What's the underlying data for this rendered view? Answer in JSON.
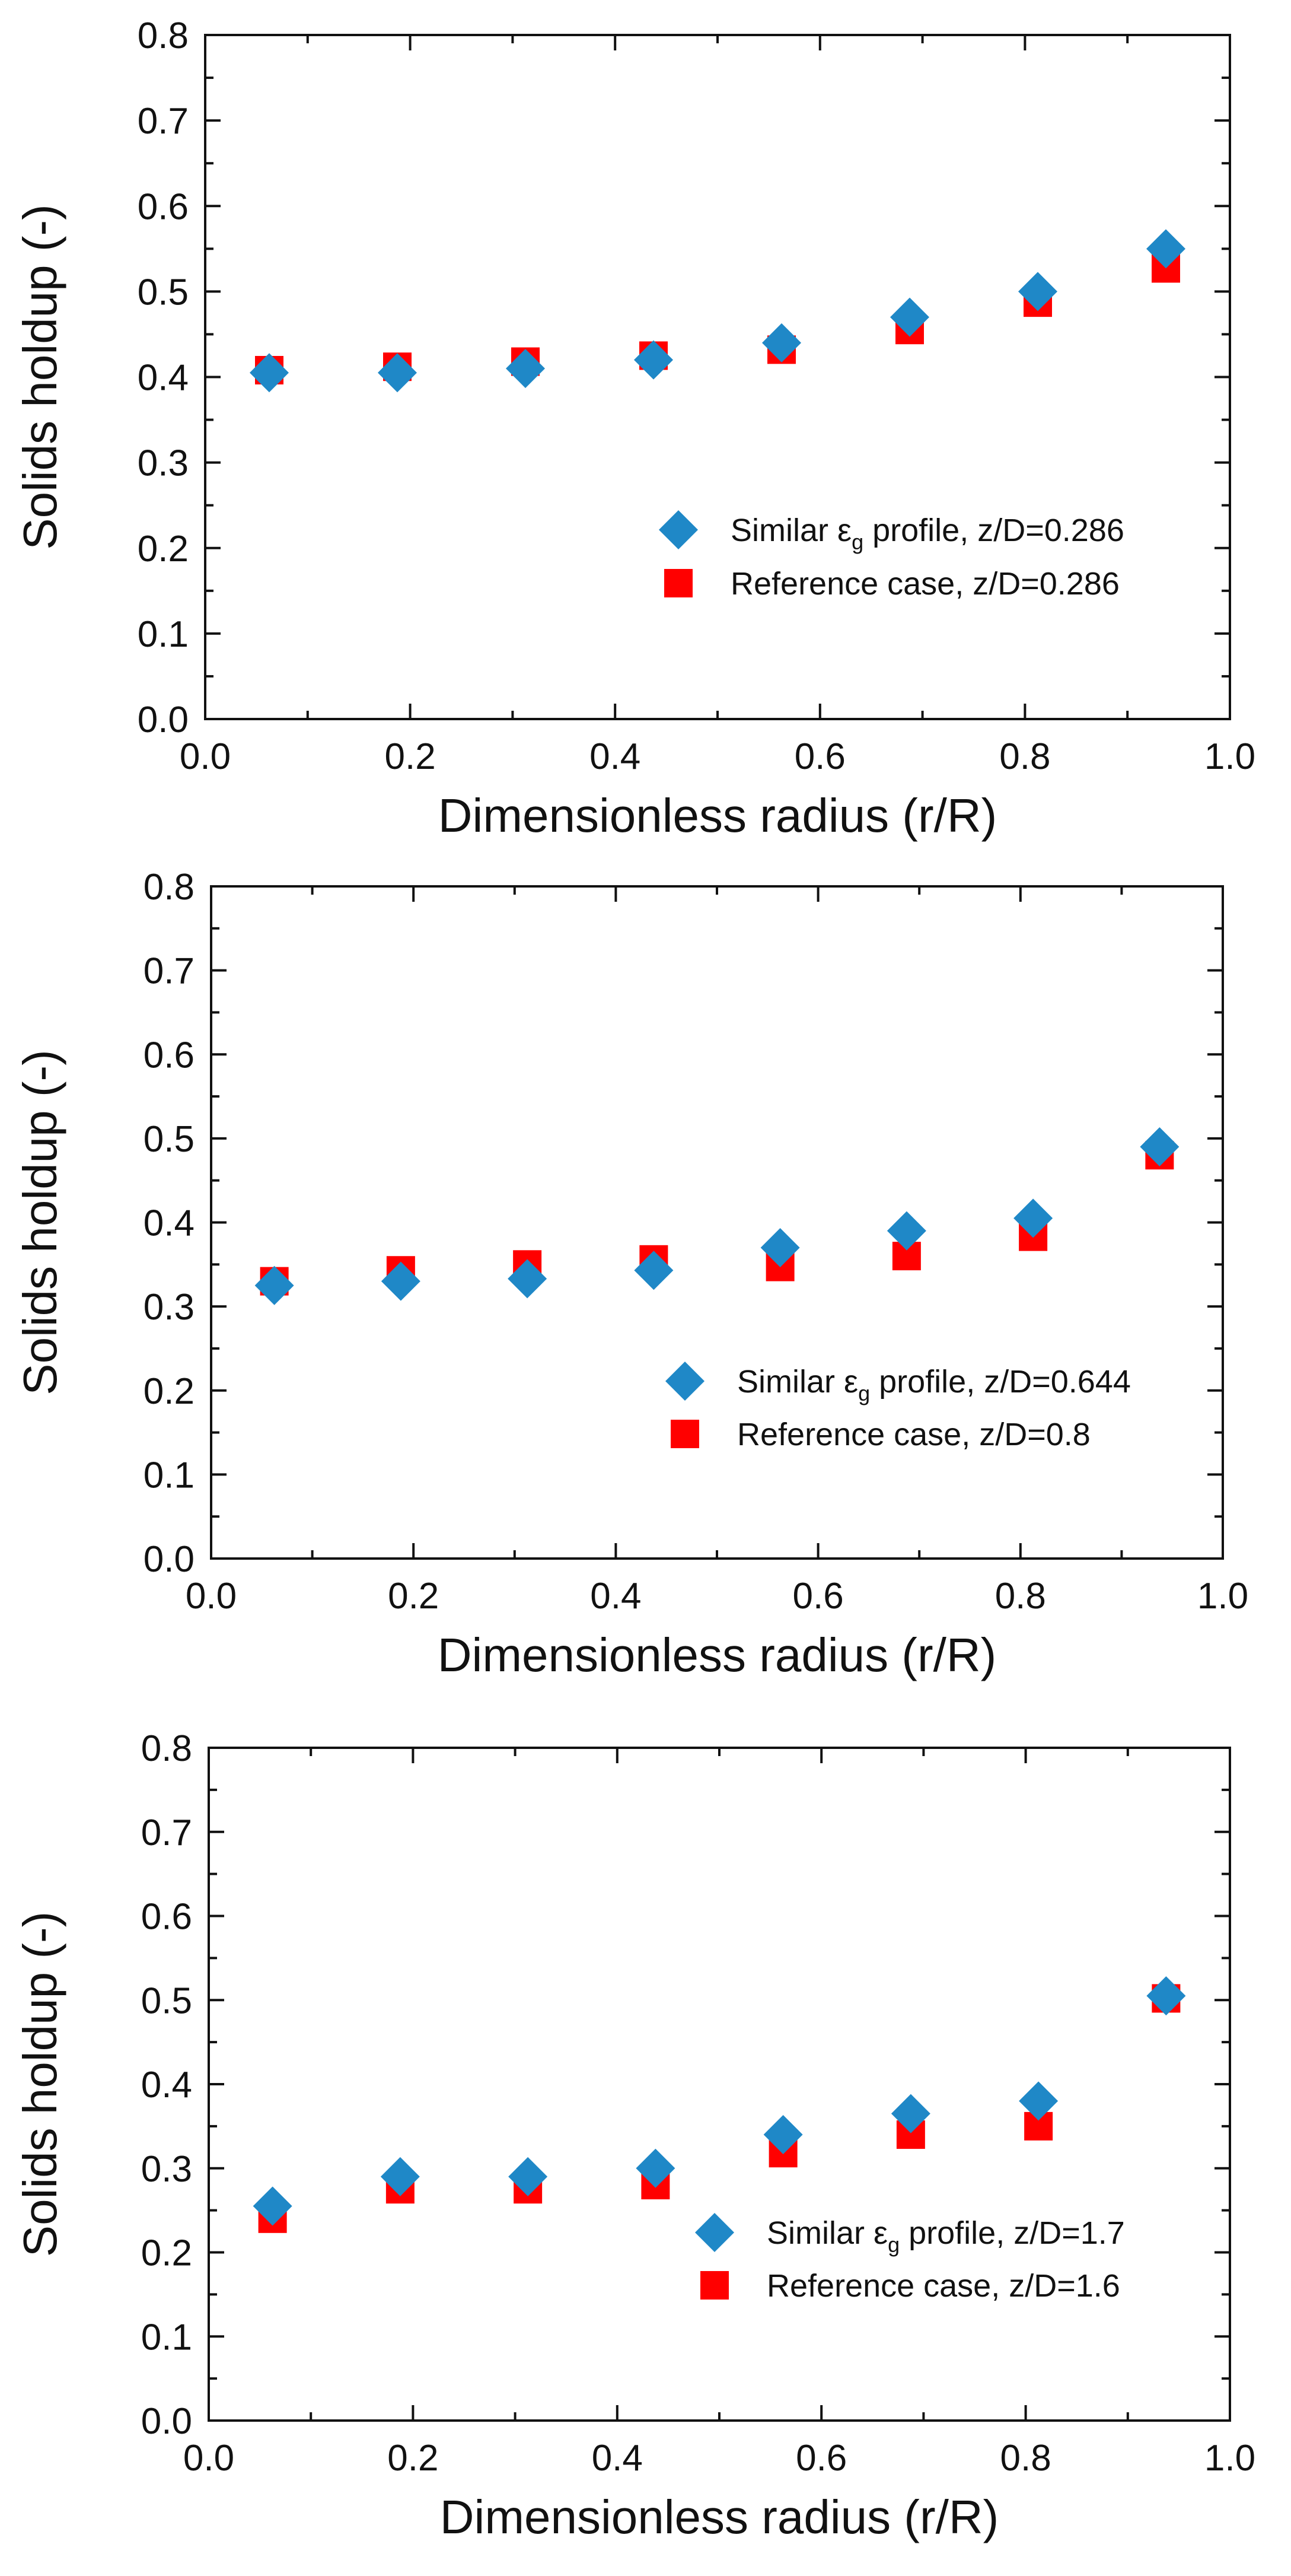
{
  "colors": {
    "diamond": "#1f88c7",
    "square": "#ff0000",
    "axis": "#111111"
  },
  "chart_data": [
    {
      "type": "scatter",
      "xlabel": "Dimensionless radius (r/R)",
      "ylabel": "Solids holdup (-)",
      "xlim": [
        0.0,
        1.0
      ],
      "ylim": [
        0.0,
        0.8
      ],
      "xticks": [
        "0.0",
        "0.2",
        "0.4",
        "0.6",
        "0.8",
        "1.0"
      ],
      "yticks": [
        "0.0",
        "0.1",
        "0.2",
        "0.3",
        "0.4",
        "0.5",
        "0.6",
        "0.7",
        "0.8"
      ],
      "legend_position": "center-right",
      "series": [
        {
          "name": "Similar εg profile, z/D=0.286",
          "legend": {
            "pre": "Similar ε",
            "sub": "g",
            "post": " profile, z/D=0.286"
          },
          "marker": "diamond",
          "x": [
            0.0625,
            0.1875,
            0.3125,
            0.4375,
            0.5625,
            0.6875,
            0.8125,
            0.9375
          ],
          "y": [
            0.405,
            0.405,
            0.41,
            0.42,
            0.44,
            0.47,
            0.5,
            0.55
          ]
        },
        {
          "name": "Reference case, z/D=0.286",
          "legend": {
            "pre": "Reference case, z/D=0.286",
            "sub": "",
            "post": ""
          },
          "marker": "square",
          "x": [
            0.0625,
            0.1875,
            0.3125,
            0.4375,
            0.5625,
            0.6875,
            0.8125,
            0.9375
          ],
          "y": [
            0.408,
            0.412,
            0.418,
            0.425,
            0.432,
            0.455,
            0.487,
            0.527
          ]
        }
      ]
    },
    {
      "type": "scatter",
      "xlabel": "Dimensionless radius (r/R)",
      "ylabel": "Solids holdup (-)",
      "xlim": [
        0.0,
        1.0
      ],
      "ylim": [
        0.0,
        0.8
      ],
      "xticks": [
        "0.0",
        "0.2",
        "0.4",
        "0.6",
        "0.8",
        "1.0"
      ],
      "yticks": [
        "0.0",
        "0.1",
        "0.2",
        "0.3",
        "0.4",
        "0.5",
        "0.6",
        "0.7",
        "0.8"
      ],
      "legend_position": "center-right",
      "series": [
        {
          "name": "Similar εg profile, z/D=0.644",
          "legend": {
            "pre": "Similar ε",
            "sub": "g",
            "post": " profile, z/D=0.644"
          },
          "marker": "diamond",
          "x": [
            0.0625,
            0.1875,
            0.3125,
            0.4375,
            0.5625,
            0.6875,
            0.8125,
            0.9375
          ],
          "y": [
            0.325,
            0.33,
            0.333,
            0.343,
            0.37,
            0.39,
            0.405,
            0.49
          ]
        },
        {
          "name": "Reference case, z/D=0.8",
          "legend": {
            "pre": "Reference case, z/D=0.8",
            "sub": "",
            "post": ""
          },
          "marker": "square",
          "x": [
            0.0625,
            0.1875,
            0.3125,
            0.4375,
            0.5625,
            0.6875,
            0.8125,
            0.9375
          ],
          "y": [
            0.33,
            0.343,
            0.35,
            0.356,
            0.347,
            0.36,
            0.383,
            0.48
          ]
        }
      ]
    },
    {
      "type": "scatter",
      "xlabel": "Dimensionless radius (r/R)",
      "ylabel": "Solids holdup (-)",
      "xlim": [
        0.0,
        1.0
      ],
      "ylim": [
        0.0,
        0.8
      ],
      "xticks": [
        "0.0",
        "0.2",
        "0.4",
        "0.6",
        "0.8",
        "1.0"
      ],
      "yticks": [
        "0.0",
        "0.1",
        "0.2",
        "0.3",
        "0.4",
        "0.5",
        "0.6",
        "0.7",
        "0.8"
      ],
      "legend_position": "lower-right",
      "series": [
        {
          "name": "Similar εg profile, z/D=1.7",
          "legend": {
            "pre": "Similar ε",
            "sub": "g",
            "post": " profile, z/D=1.7"
          },
          "marker": "diamond",
          "x": [
            0.0625,
            0.1875,
            0.3125,
            0.4375,
            0.5625,
            0.6875,
            0.8125,
            0.9375
          ],
          "y": [
            0.255,
            0.29,
            0.29,
            0.3,
            0.34,
            0.365,
            0.38,
            0.505
          ]
        },
        {
          "name": "Reference case, z/D=1.6",
          "legend": {
            "pre": "Reference case, z/D=1.6",
            "sub": "",
            "post": ""
          },
          "marker": "square",
          "x": [
            0.0625,
            0.1875,
            0.3125,
            0.4375,
            0.5625,
            0.6875,
            0.8125,
            0.9375
          ],
          "y": [
            0.24,
            0.275,
            0.275,
            0.28,
            0.318,
            0.34,
            0.35,
            0.502
          ]
        }
      ]
    }
  ]
}
